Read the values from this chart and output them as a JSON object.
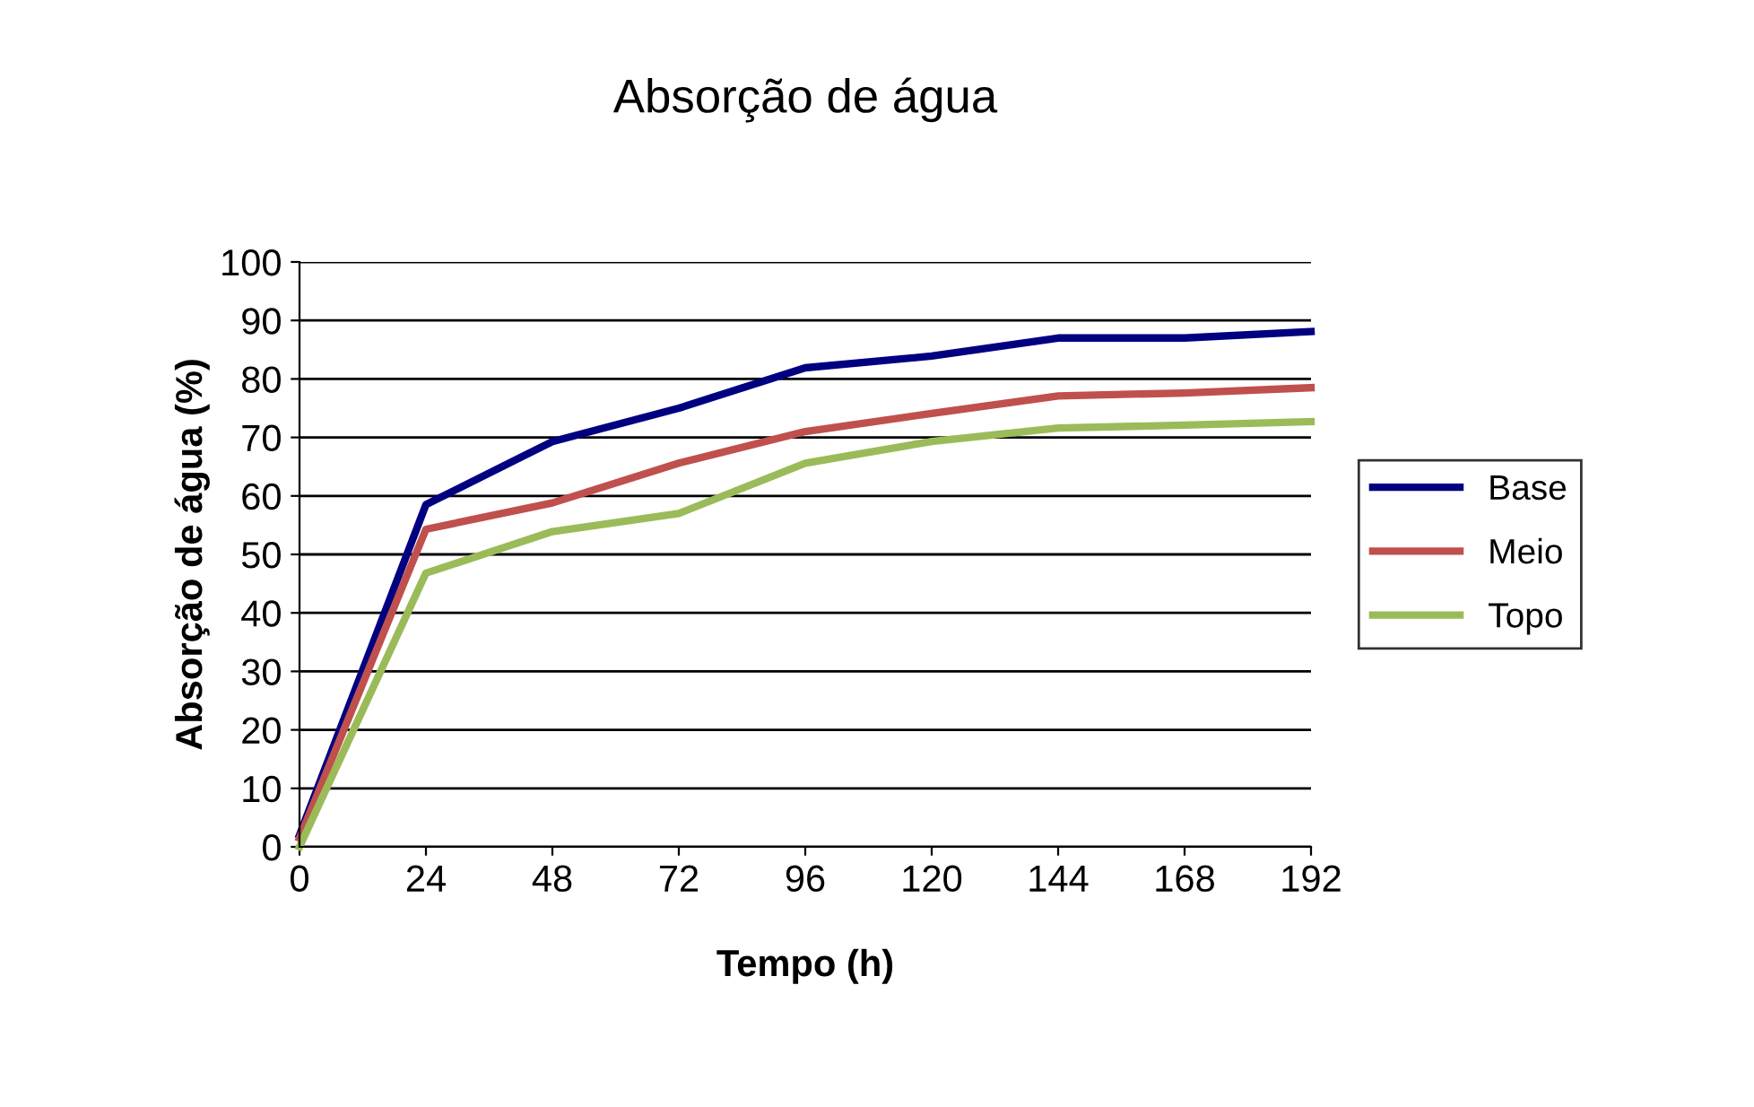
{
  "chart_data": {
    "type": "line",
    "title": "Absorção de água",
    "xlabel": "Tempo (h)",
    "ylabel": "Absorção de água (%)",
    "x": [
      0,
      24,
      48,
      72,
      96,
      120,
      144,
      168,
      192
    ],
    "series": [
      {
        "name": "Base",
        "color": "#000080",
        "values": [
          2,
          58.5,
          69.3,
          75,
          81.9,
          83.9,
          87,
          87,
          88.1
        ]
      },
      {
        "name": "Meio",
        "color": "#c0504d",
        "values": [
          1.5,
          54.3,
          58.8,
          65.6,
          71,
          74.1,
          77.1,
          77.6,
          78.5
        ]
      },
      {
        "name": "Topo",
        "color": "#9bbb59",
        "values": [
          0,
          46.8,
          53.9,
          57,
          65.6,
          69.3,
          71.6,
          72.1,
          72.7
        ]
      }
    ],
    "xlim": [
      0,
      192
    ],
    "xticks": [
      0,
      24,
      48,
      72,
      96,
      120,
      144,
      168,
      192
    ],
    "ylim": [
      0,
      100
    ],
    "yticks": [
      0,
      10,
      20,
      30,
      40,
      50,
      60,
      70,
      80,
      90,
      100
    ],
    "grid": "y",
    "legend": "right",
    "marker": "none",
    "line_style": "solid"
  }
}
